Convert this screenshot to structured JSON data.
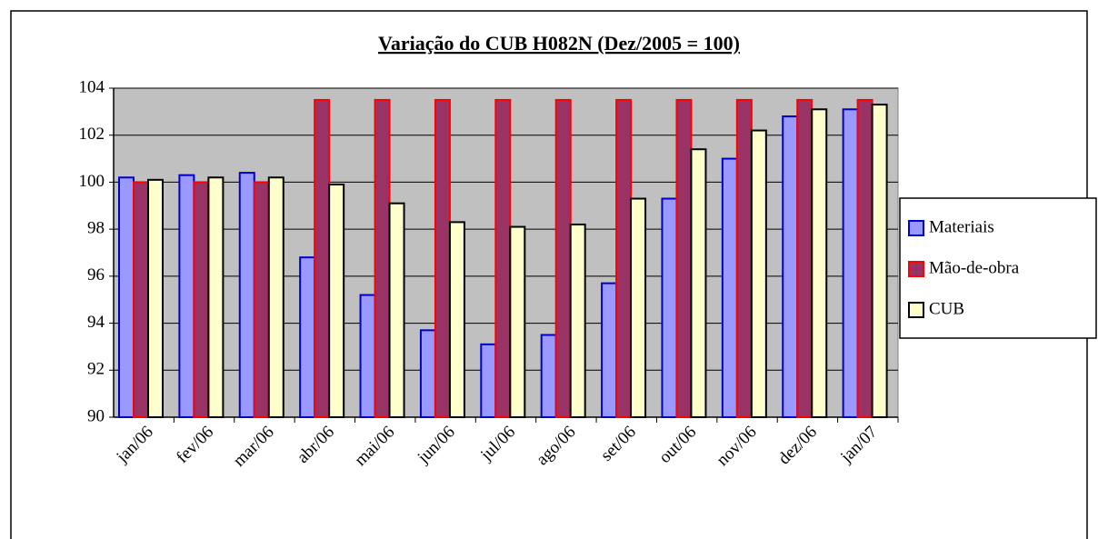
{
  "chart_data": {
    "type": "bar",
    "title": "Variação do CUB H082N (Dez/2005 = 100)",
    "categories": [
      "jan/06",
      "fev/06",
      "mar/06",
      "abr/06",
      "mai/06",
      "jun/06",
      "jul/06",
      "ago/06",
      "set/06",
      "out/06",
      "nov/06",
      "dez/06",
      "jan/07"
    ],
    "series": [
      {
        "name": "Materiais",
        "color": "#9999ff",
        "border": "#0000cc",
        "values": [
          100.2,
          100.3,
          100.4,
          96.8,
          95.2,
          93.7,
          93.1,
          93.5,
          95.7,
          99.3,
          101.0,
          102.8,
          103.1
        ]
      },
      {
        "name": "Mão-de-obra",
        "color": "#993366",
        "border": "#ff0000",
        "values": [
          100.0,
          100.0,
          100.0,
          103.5,
          103.5,
          103.5,
          103.5,
          103.5,
          103.5,
          103.5,
          103.5,
          103.5,
          103.5
        ]
      },
      {
        "name": "CUB",
        "color": "#ffffcc",
        "border": "#000000",
        "values": [
          100.1,
          100.2,
          100.2,
          99.9,
          99.1,
          98.3,
          98.1,
          98.2,
          99.3,
          101.4,
          102.2,
          103.1,
          103.3
        ]
      }
    ],
    "ylim": [
      90,
      104
    ],
    "yticks": [
      90,
      92,
      94,
      96,
      98,
      100,
      102,
      104
    ],
    "grid": true,
    "legend": "right"
  }
}
